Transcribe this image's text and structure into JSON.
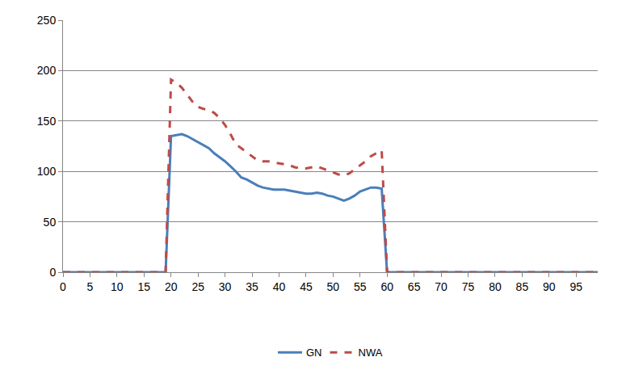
{
  "chart_data": {
    "type": "line",
    "x": [
      0,
      1,
      2,
      3,
      4,
      5,
      6,
      7,
      8,
      9,
      10,
      11,
      12,
      13,
      14,
      15,
      16,
      17,
      18,
      19,
      20,
      21,
      22,
      23,
      24,
      25,
      26,
      27,
      28,
      29,
      30,
      31,
      32,
      33,
      34,
      35,
      36,
      37,
      38,
      39,
      40,
      41,
      42,
      43,
      44,
      45,
      46,
      47,
      48,
      49,
      50,
      51,
      52,
      53,
      54,
      55,
      56,
      57,
      58,
      59,
      60,
      61,
      62,
      63,
      64,
      65,
      66,
      67,
      68,
      69,
      70,
      71,
      72,
      73,
      74,
      75,
      76,
      77,
      78,
      79,
      80,
      81,
      82,
      83,
      84,
      85,
      86,
      87,
      88,
      89,
      90,
      91,
      92,
      93,
      94,
      95,
      96,
      97,
      98,
      99
    ],
    "series": [
      {
        "name": "GN",
        "color": "#4a7ebb",
        "line_style": "solid",
        "values": [
          0,
          0,
          0,
          0,
          0,
          0,
          0,
          0,
          0,
          0,
          0,
          0,
          0,
          0,
          0,
          0,
          0,
          0,
          0,
          0,
          135,
          136,
          137,
          135,
          132,
          129,
          126,
          123,
          118,
          114,
          110,
          105,
          100,
          94,
          92,
          89,
          86,
          84,
          83,
          82,
          82,
          82,
          81,
          80,
          79,
          78,
          78,
          79,
          78,
          76,
          75,
          73,
          71,
          73,
          76,
          80,
          82,
          84,
          84,
          83,
          0,
          0,
          0,
          0,
          0,
          0,
          0,
          0,
          0,
          0,
          0,
          0,
          0,
          0,
          0,
          0,
          0,
          0,
          0,
          0,
          0,
          0,
          0,
          0,
          0,
          0,
          0,
          0,
          0,
          0,
          0,
          0,
          0,
          0,
          0,
          0,
          0,
          0,
          0,
          0
        ]
      },
      {
        "name": "NWA",
        "color": "#be4b48",
        "line_style": "dash",
        "values": [
          0,
          0,
          0,
          0,
          0,
          0,
          0,
          0,
          0,
          0,
          0,
          0,
          0,
          0,
          0,
          0,
          0,
          0,
          0,
          0,
          191,
          188,
          183,
          176,
          169,
          164,
          162,
          161,
          158,
          153,
          146,
          137,
          127,
          123,
          119,
          115,
          111,
          110,
          110,
          109,
          108,
          107,
          106,
          104,
          103,
          103,
          104,
          105,
          103,
          101,
          99,
          97,
          96,
          98,
          102,
          106,
          110,
          115,
          118,
          121,
          0,
          0,
          0,
          0,
          0,
          0,
          0,
          0,
          0,
          0,
          0,
          0,
          0,
          0,
          0,
          0,
          0,
          0,
          0,
          0,
          0,
          0,
          0,
          0,
          0,
          0,
          0,
          0,
          0,
          0,
          0,
          0,
          0,
          0,
          0,
          0,
          0,
          0,
          0,
          0
        ]
      }
    ],
    "xlim": [
      0,
      99
    ],
    "xticks": [
      0,
      5,
      10,
      15,
      20,
      25,
      30,
      35,
      40,
      45,
      50,
      55,
      60,
      65,
      70,
      75,
      80,
      85,
      90,
      95
    ],
    "ylim": [
      0,
      250
    ],
    "yticks": [
      0,
      50,
      100,
      150,
      200,
      250
    ],
    "grid": true,
    "legend": "bottom"
  }
}
